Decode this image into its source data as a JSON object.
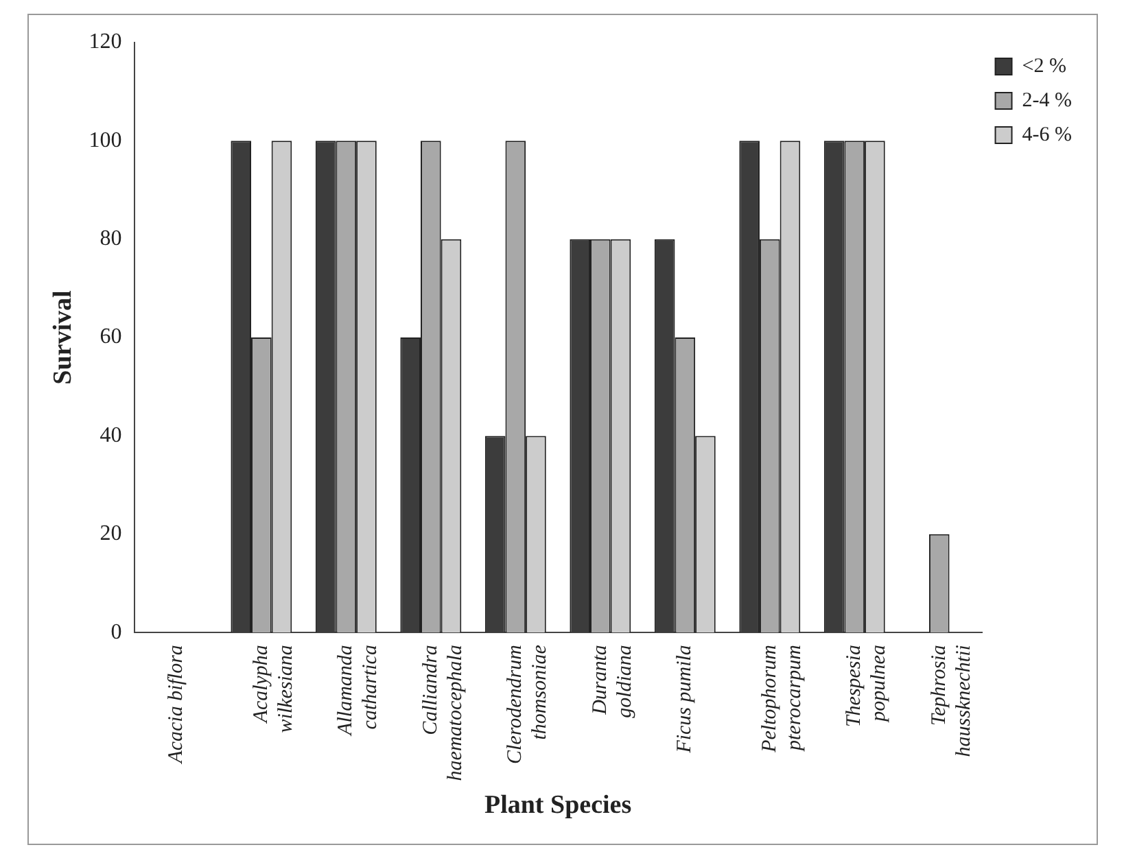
{
  "chart_data": {
    "type": "bar",
    "xlabel": "Plant Species",
    "ylabel": "Survival",
    "categories": [
      "Acacia biflora",
      "Acalypha\nwilkesiana",
      "Allamanda\ncathartica",
      "Calliandra\nhaematocephala",
      "Clerodendrum\nthomsoniae",
      "Duranta\ngoldiana",
      "Ficus pumila",
      "Peltophorum\npterocarpum",
      "Thespesia\npopulnea",
      "Tephrosia\nhaussknechtii"
    ],
    "series": [
      {
        "name": "<2 %",
        "color": "#3c3c3c",
        "values": [
          0,
          100,
          100,
          60,
          40,
          80,
          80,
          100,
          100,
          0
        ]
      },
      {
        "name": "2-4 %",
        "color": "#a8a8a8",
        "values": [
          0,
          60,
          100,
          100,
          100,
          80,
          60,
          80,
          100,
          20
        ]
      },
      {
        "name": "4-6 %",
        "color": "#cccccc",
        "values": [
          0,
          100,
          100,
          80,
          40,
          80,
          40,
          100,
          100,
          0
        ]
      }
    ],
    "ylim": [
      0,
      120
    ],
    "yticks": [
      0,
      20,
      40,
      60,
      80,
      100,
      120
    ],
    "grid": false,
    "legend": "top right"
  }
}
